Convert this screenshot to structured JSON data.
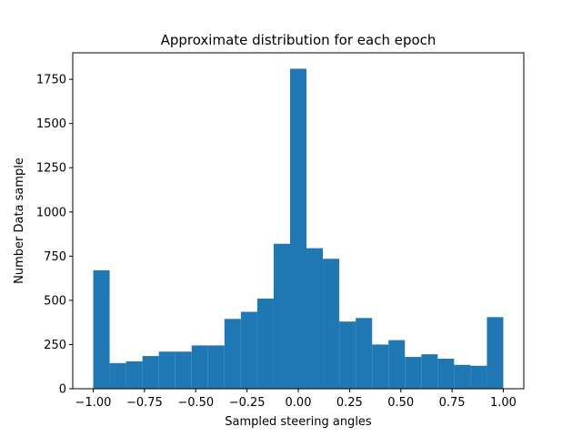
{
  "chart_data": {
    "type": "bar",
    "title": "Approximate distribution for each epoch",
    "xlabel": "Sampled steering angles",
    "ylabel": "Number Data sample",
    "xlim": [
      -1.1,
      1.1
    ],
    "ylim": [
      0,
      1900
    ],
    "xticks": [
      -1.0,
      -0.75,
      -0.5,
      -0.25,
      0.0,
      0.25,
      0.5,
      0.75,
      1.0
    ],
    "xtick_labels": [
      "−1.00",
      "−0.75",
      "−0.50",
      "−0.25",
      "0.00",
      "0.25",
      "0.50",
      "0.75",
      "1.00"
    ],
    "yticks": [
      0,
      250,
      500,
      750,
      1000,
      1250,
      1500,
      1750
    ],
    "ytick_labels": [
      "0",
      "250",
      "500",
      "750",
      "1000",
      "1250",
      "1500",
      "1750"
    ],
    "bin_edges": [
      -1.0,
      -0.92,
      -0.84,
      -0.76,
      -0.68,
      -0.6,
      -0.52,
      -0.44,
      -0.36,
      -0.28,
      -0.2,
      -0.12,
      -0.04,
      0.04,
      0.12,
      0.2,
      0.28,
      0.36,
      0.44,
      0.52,
      0.6,
      0.68,
      0.76,
      0.84,
      0.92,
      1.0
    ],
    "values": [
      670,
      145,
      155,
      185,
      210,
      210,
      245,
      245,
      395,
      435,
      510,
      820,
      1810,
      795,
      735,
      380,
      400,
      250,
      275,
      180,
      195,
      170,
      135,
      130,
      405
    ],
    "bar_color": "#1f77b4",
    "grid": false,
    "legend": "none"
  }
}
